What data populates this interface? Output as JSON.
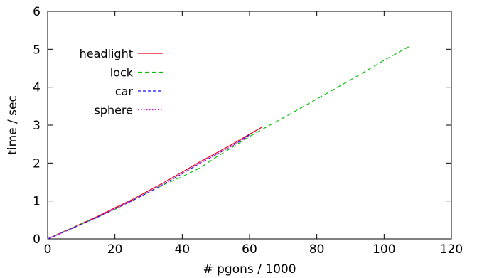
{
  "chart_data": {
    "type": "line",
    "xlabel": "# pgons / 1000",
    "ylabel": "time / sec",
    "xlim": [
      0,
      120
    ],
    "ylim": [
      0,
      6
    ],
    "x_ticks": [
      0,
      20,
      40,
      60,
      80,
      100,
      120
    ],
    "y_ticks": [
      0,
      1,
      2,
      3,
      4,
      5,
      6
    ],
    "grid": false,
    "legend_position": "top-left",
    "series": [
      {
        "name": "headlight",
        "color": "#e8001c",
        "dash": "solid",
        "x": [
          0,
          2,
          5,
          8,
          10,
          15,
          20,
          25,
          30,
          35,
          40,
          45,
          50,
          55,
          60,
          64
        ],
        "y": [
          0,
          0.08,
          0.2,
          0.32,
          0.4,
          0.6,
          0.82,
          1.03,
          1.27,
          1.51,
          1.76,
          2.02,
          2.26,
          2.5,
          2.76,
          2.96
        ]
      },
      {
        "name": "lock",
        "color": "#00c400",
        "dash": "6,4",
        "x": [
          0,
          5,
          10,
          15,
          20,
          25,
          30,
          35,
          40,
          45,
          50,
          55,
          60,
          65,
          70,
          75,
          80,
          85,
          90,
          95,
          100,
          108
        ],
        "y": [
          0,
          0.2,
          0.39,
          0.58,
          0.78,
          1.0,
          1.23,
          1.45,
          1.64,
          1.86,
          2.15,
          2.42,
          2.7,
          2.95,
          3.19,
          3.44,
          3.69,
          3.94,
          4.19,
          4.45,
          4.71,
          5.1
        ]
      },
      {
        "name": "car",
        "color": "#1010ff",
        "dash": "4,3",
        "x": [
          0,
          2,
          5,
          10,
          15,
          20,
          25,
          30,
          35,
          40,
          45,
          50,
          55,
          60
        ],
        "y": [
          0,
          0.07,
          0.19,
          0.38,
          0.58,
          0.79,
          1.0,
          1.23,
          1.47,
          1.72,
          1.98,
          2.22,
          2.46,
          2.74
        ]
      },
      {
        "name": "sphere",
        "color": "#e000e0",
        "dash": "1.5,2.5",
        "x": [
          0,
          2,
          5,
          10,
          15,
          20,
          25,
          30,
          35,
          40,
          45,
          50,
          55,
          60
        ],
        "y": [
          0,
          0.07,
          0.19,
          0.38,
          0.58,
          0.79,
          1.0,
          1.23,
          1.47,
          1.72,
          1.98,
          2.22,
          2.46,
          2.72
        ]
      }
    ]
  }
}
